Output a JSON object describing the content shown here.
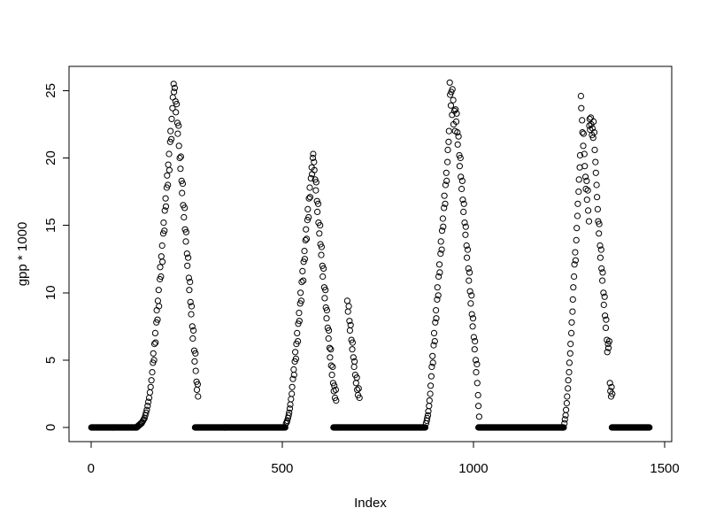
{
  "chart_data": {
    "type": "scatter",
    "title": "",
    "xlabel": "Index",
    "ylabel": "gpp * 1000",
    "x_ticks": [
      0,
      500,
      1000,
      1500
    ],
    "y_ticks": [
      0,
      5,
      10,
      15,
      20,
      25
    ],
    "xlim": [
      -57.4,
      1518.4
    ],
    "ylim": [
      -1.05,
      26.8
    ],
    "grid": false,
    "legend": null,
    "marker": "open-circle",
    "point_color": "#000000",
    "background_color": "#ffffff",
    "n_points_approx": 1460,
    "zero_runs": [
      [
        1,
        120
      ],
      [
        272,
        508
      ],
      [
        634,
        874
      ],
      [
        1013,
        1236
      ],
      [
        1362,
        1460
      ]
    ],
    "points": [
      [
        122,
        0.1
      ],
      [
        124,
        0.1
      ],
      [
        126,
        0.2
      ],
      [
        128,
        0.2
      ],
      [
        130,
        0.3
      ],
      [
        132,
        0.3
      ],
      [
        134,
        0.4
      ],
      [
        136,
        0.5
      ],
      [
        138,
        0.6
      ],
      [
        140,
        0.7
      ],
      [
        142,
        0.9
      ],
      [
        144,
        1.1
      ],
      [
        146,
        1.3
      ],
      [
        148,
        1.6
      ],
      [
        150,
        1.9
      ],
      [
        152,
        2.2
      ],
      [
        154,
        2.6
      ],
      [
        156,
        3.0
      ],
      [
        158,
        3.5
      ],
      [
        160,
        4.1
      ],
      [
        162,
        4.8
      ],
      [
        163,
        5.5
      ],
      [
        165,
        5.0
      ],
      [
        166,
        6.2
      ],
      [
        168,
        7.0
      ],
      [
        169,
        6.3
      ],
      [
        171,
        7.8
      ],
      [
        172,
        8.7
      ],
      [
        174,
        8.0
      ],
      [
        175,
        9.4
      ],
      [
        177,
        10.2
      ],
      [
        178,
        9.0
      ],
      [
        180,
        11.0
      ],
      [
        181,
        11.9
      ],
      [
        183,
        11.2
      ],
      [
        184,
        12.7
      ],
      [
        186,
        13.5
      ],
      [
        187,
        12.3
      ],
      [
        189,
        14.4
      ],
      [
        190,
        15.2
      ],
      [
        192,
        14.6
      ],
      [
        193,
        16.1
      ],
      [
        195,
        17.0
      ],
      [
        196,
        16.4
      ],
      [
        198,
        17.8
      ],
      [
        199,
        18.7
      ],
      [
        201,
        18.0
      ],
      [
        202,
        19.5
      ],
      [
        204,
        20.3
      ],
      [
        205,
        19.1
      ],
      [
        207,
        21.2
      ],
      [
        208,
        22.0
      ],
      [
        210,
        21.4
      ],
      [
        211,
        22.9
      ],
      [
        213,
        23.7
      ],
      [
        214,
        24.5
      ],
      [
        216,
        25.5
      ],
      [
        217,
        24.9
      ],
      [
        219,
        25.2
      ],
      [
        221,
        24.2
      ],
      [
        222,
        23.4
      ],
      [
        224,
        24.0
      ],
      [
        226,
        22.6
      ],
      [
        227,
        21.8
      ],
      [
        229,
        22.4
      ],
      [
        230,
        20.9
      ],
      [
        232,
        20.0
      ],
      [
        234,
        19.2
      ],
      [
        235,
        20.1
      ],
      [
        237,
        18.3
      ],
      [
        238,
        17.4
      ],
      [
        240,
        18.1
      ],
      [
        241,
        16.5
      ],
      [
        243,
        15.6
      ],
      [
        245,
        16.3
      ],
      [
        246,
        14.7
      ],
      [
        248,
        13.8
      ],
      [
        249,
        14.5
      ],
      [
        251,
        12.9
      ],
      [
        252,
        12.0
      ],
      [
        254,
        12.6
      ],
      [
        256,
        11.1
      ],
      [
        257,
        10.2
      ],
      [
        259,
        10.8
      ],
      [
        260,
        9.3
      ],
      [
        262,
        8.4
      ],
      [
        263,
        9.0
      ],
      [
        265,
        7.5
      ],
      [
        266,
        6.6
      ],
      [
        268,
        7.2
      ],
      [
        270,
        5.7
      ],
      [
        271,
        4.9
      ],
      [
        273,
        5.5
      ],
      [
        274,
        4.2
      ],
      [
        276,
        3.4
      ],
      [
        277,
        2.8
      ],
      [
        279,
        3.2
      ],
      [
        280,
        2.3
      ],
      [
        510,
        0.3
      ],
      [
        512,
        0.4
      ],
      [
        513,
        0.5
      ],
      [
        515,
        0.7
      ],
      [
        517,
        0.9
      ],
      [
        518,
        1.1
      ],
      [
        520,
        1.4
      ],
      [
        521,
        1.7
      ],
      [
        523,
        2.1
      ],
      [
        525,
        2.5
      ],
      [
        526,
        3.0
      ],
      [
        528,
        3.6
      ],
      [
        530,
        4.3
      ],
      [
        531,
        3.9
      ],
      [
        533,
        4.9
      ],
      [
        534,
        5.6
      ],
      [
        536,
        5.1
      ],
      [
        537,
        6.2
      ],
      [
        539,
        7.0
      ],
      [
        541,
        6.4
      ],
      [
        542,
        7.7
      ],
      [
        544,
        8.5
      ],
      [
        545,
        7.9
      ],
      [
        547,
        9.2
      ],
      [
        548,
        10.0
      ],
      [
        550,
        9.4
      ],
      [
        551,
        10.8
      ],
      [
        553,
        11.6
      ],
      [
        555,
        10.9
      ],
      [
        556,
        12.3
      ],
      [
        558,
        13.1
      ],
      [
        559,
        12.5
      ],
      [
        561,
        13.9
      ],
      [
        562,
        14.7
      ],
      [
        564,
        14.0
      ],
      [
        566,
        15.4
      ],
      [
        567,
        16.2
      ],
      [
        569,
        15.6
      ],
      [
        570,
        17.0
      ],
      [
        572,
        17.8
      ],
      [
        573,
        17.1
      ],
      [
        575,
        18.5
      ],
      [
        577,
        19.3
      ],
      [
        578,
        18.8
      ],
      [
        580,
        20.0
      ],
      [
        581,
        20.3
      ],
      [
        583,
        19.7
      ],
      [
        584,
        19.1
      ],
      [
        586,
        18.4
      ],
      [
        588,
        17.6
      ],
      [
        589,
        18.2
      ],
      [
        591,
        16.8
      ],
      [
        592,
        16.0
      ],
      [
        594,
        16.6
      ],
      [
        595,
        15.2
      ],
      [
        597,
        14.4
      ],
      [
        599,
        15.0
      ],
      [
        600,
        13.6
      ],
      [
        602,
        12.8
      ],
      [
        603,
        13.4
      ],
      [
        605,
        12.0
      ],
      [
        606,
        11.2
      ],
      [
        608,
        11.8
      ],
      [
        610,
        10.4
      ],
      [
        611,
        9.6
      ],
      [
        613,
        10.2
      ],
      [
        614,
        8.9
      ],
      [
        616,
        8.1
      ],
      [
        617,
        8.7
      ],
      [
        619,
        7.4
      ],
      [
        621,
        6.6
      ],
      [
        622,
        7.2
      ],
      [
        624,
        5.9
      ],
      [
        625,
        5.2
      ],
      [
        627,
        5.8
      ],
      [
        628,
        4.6
      ],
      [
        630,
        3.9
      ],
      [
        632,
        4.5
      ],
      [
        633,
        3.3
      ],
      [
        635,
        2.7
      ],
      [
        636,
        3.1
      ],
      [
        638,
        2.2
      ],
      [
        640,
        2.8
      ],
      [
        641,
        2.0
      ],
      [
        670,
        9.4
      ],
      [
        672,
        8.6
      ],
      [
        674,
        9.0
      ],
      [
        676,
        7.9
      ],
      [
        677,
        7.2
      ],
      [
        679,
        7.6
      ],
      [
        681,
        6.5
      ],
      [
        683,
        5.8
      ],
      [
        684,
        6.3
      ],
      [
        686,
        5.2
      ],
      [
        688,
        4.5
      ],
      [
        689,
        4.9
      ],
      [
        691,
        3.9
      ],
      [
        693,
        3.3
      ],
      [
        695,
        3.7
      ],
      [
        696,
        2.8
      ],
      [
        698,
        2.4
      ],
      [
        700,
        2.9
      ],
      [
        702,
        2.2
      ],
      [
        876,
        0.3
      ],
      [
        878,
        0.5
      ],
      [
        879,
        0.7
      ],
      [
        881,
        0.9
      ],
      [
        882,
        1.2
      ],
      [
        884,
        1.6
      ],
      [
        885,
        2.0
      ],
      [
        887,
        2.5
      ],
      [
        888,
        3.1
      ],
      [
        890,
        3.8
      ],
      [
        891,
        4.5
      ],
      [
        893,
        5.3
      ],
      [
        894,
        4.8
      ],
      [
        896,
        6.1
      ],
      [
        897,
        7.0
      ],
      [
        899,
        6.4
      ],
      [
        900,
        7.8
      ],
      [
        902,
        8.7
      ],
      [
        903,
        8.1
      ],
      [
        905,
        9.5
      ],
      [
        906,
        10.4
      ],
      [
        908,
        9.8
      ],
      [
        909,
        11.2
      ],
      [
        911,
        12.1
      ],
      [
        912,
        11.5
      ],
      [
        914,
        12.9
      ],
      [
        915,
        13.8
      ],
      [
        917,
        13.2
      ],
      [
        918,
        14.6
      ],
      [
        920,
        15.5
      ],
      [
        921,
        14.9
      ],
      [
        923,
        16.3
      ],
      [
        924,
        17.2
      ],
      [
        926,
        16.6
      ],
      [
        927,
        18.0
      ],
      [
        929,
        18.9
      ],
      [
        930,
        18.3
      ],
      [
        932,
        19.7
      ],
      [
        933,
        20.6
      ],
      [
        935,
        21.2
      ],
      [
        936,
        22.0
      ],
      [
        938,
        25.6
      ],
      [
        939,
        24.7
      ],
      [
        941,
        23.9
      ],
      [
        942,
        24.9
      ],
      [
        944,
        23.2
      ],
      [
        945,
        25.1
      ],
      [
        947,
        24.3
      ],
      [
        948,
        22.5
      ],
      [
        950,
        23.5
      ],
      [
        952,
        22.0
      ],
      [
        953,
        23.6
      ],
      [
        955,
        22.7
      ],
      [
        956,
        23.3
      ],
      [
        958,
        21.9
      ],
      [
        959,
        21.0
      ],
      [
        961,
        21.6
      ],
      [
        963,
        20.2
      ],
      [
        964,
        19.4
      ],
      [
        966,
        20.0
      ],
      [
        967,
        18.6
      ],
      [
        969,
        17.7
      ],
      [
        971,
        18.3
      ],
      [
        972,
        16.9
      ],
      [
        974,
        16.0
      ],
      [
        975,
        16.6
      ],
      [
        977,
        15.2
      ],
      [
        979,
        14.3
      ],
      [
        980,
        14.9
      ],
      [
        982,
        13.5
      ],
      [
        983,
        12.6
      ],
      [
        985,
        13.2
      ],
      [
        987,
        11.8
      ],
      [
        988,
        10.9
      ],
      [
        990,
        11.5
      ],
      [
        991,
        10.1
      ],
      [
        993,
        9.2
      ],
      [
        995,
        9.8
      ],
      [
        996,
        8.4
      ],
      [
        998,
        7.5
      ],
      [
        999,
        8.1
      ],
      [
        1001,
        6.7
      ],
      [
        1003,
        5.8
      ],
      [
        1004,
        6.4
      ],
      [
        1006,
        5.0
      ],
      [
        1007,
        4.1
      ],
      [
        1009,
        4.7
      ],
      [
        1010,
        3.3
      ],
      [
        1012,
        2.4
      ],
      [
        1013,
        1.6
      ],
      [
        1015,
        0.8
      ],
      [
        1238,
        0.3
      ],
      [
        1239,
        0.6
      ],
      [
        1241,
        0.9
      ],
      [
        1242,
        1.3
      ],
      [
        1244,
        1.8
      ],
      [
        1245,
        2.3
      ],
      [
        1247,
        2.9
      ],
      [
        1248,
        3.5
      ],
      [
        1250,
        4.1
      ],
      [
        1251,
        4.8
      ],
      [
        1253,
        5.5
      ],
      [
        1254,
        6.2
      ],
      [
        1256,
        7.0
      ],
      [
        1257,
        7.8
      ],
      [
        1259,
        8.6
      ],
      [
        1260,
        9.5
      ],
      [
        1261,
        10.4
      ],
      [
        1263,
        11.2
      ],
      [
        1264,
        12.1
      ],
      [
        1266,
        13.0
      ],
      [
        1267,
        12.4
      ],
      [
        1269,
        13.9
      ],
      [
        1270,
        14.8
      ],
      [
        1272,
        15.7
      ],
      [
        1273,
        16.6
      ],
      [
        1275,
        17.5
      ],
      [
        1276,
        18.4
      ],
      [
        1278,
        19.3
      ],
      [
        1279,
        20.2
      ],
      [
        1281,
        24.6
      ],
      [
        1282,
        23.7
      ],
      [
        1284,
        22.8
      ],
      [
        1285,
        21.9
      ],
      [
        1287,
        20.9
      ],
      [
        1288,
        21.8
      ],
      [
        1290,
        20.3
      ],
      [
        1291,
        19.4
      ],
      [
        1293,
        18.6
      ],
      [
        1294,
        17.7
      ],
      [
        1296,
        18.3
      ],
      [
        1297,
        16.9
      ],
      [
        1299,
        17.6
      ],
      [
        1300,
        16.1
      ],
      [
        1302,
        15.3
      ],
      [
        1303,
        22.4
      ],
      [
        1304,
        22.9
      ],
      [
        1305,
        22.1
      ],
      [
        1307,
        23.0
      ],
      [
        1308,
        22.5
      ],
      [
        1310,
        21.7
      ],
      [
        1311,
        22.2
      ],
      [
        1313,
        21.5
      ],
      [
        1314,
        22.7
      ],
      [
        1316,
        21.9
      ],
      [
        1317,
        20.6
      ],
      [
        1319,
        19.7
      ],
      [
        1320,
        18.9
      ],
      [
        1322,
        18.0
      ],
      [
        1323,
        17.1
      ],
      [
        1325,
        16.2
      ],
      [
        1326,
        15.3
      ],
      [
        1328,
        14.4
      ],
      [
        1329,
        15.1
      ],
      [
        1331,
        13.5
      ],
      [
        1332,
        12.6
      ],
      [
        1334,
        13.2
      ],
      [
        1335,
        11.8
      ],
      [
        1337,
        10.9
      ],
      [
        1338,
        11.5
      ],
      [
        1340,
        10.0
      ],
      [
        1341,
        9.1
      ],
      [
        1343,
        9.7
      ],
      [
        1344,
        8.3
      ],
      [
        1346,
        7.4
      ],
      [
        1347,
        8.0
      ],
      [
        1349,
        6.5
      ],
      [
        1350,
        5.6
      ],
      [
        1352,
        6.2
      ],
      [
        1353,
        5.9
      ],
      [
        1355,
        6.4
      ],
      [
        1357,
        3.3
      ],
      [
        1358,
        2.7
      ],
      [
        1360,
        2.3
      ],
      [
        1361,
        3.0
      ],
      [
        1363,
        2.5
      ]
    ]
  }
}
